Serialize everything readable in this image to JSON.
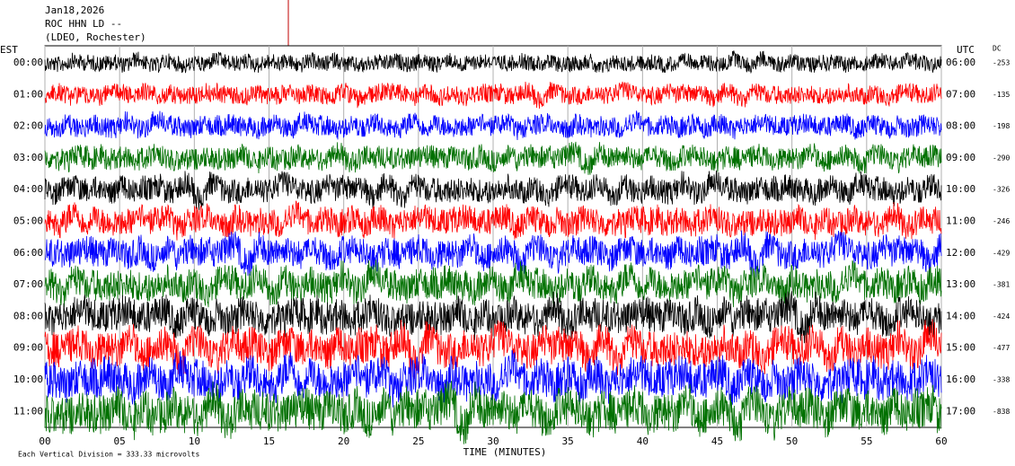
{
  "header": {
    "date": "Jan18,2026",
    "station": "ROC HHN LD --",
    "network": "(LDEO, Rochester)"
  },
  "left_axis": {
    "title": "EST",
    "labels": [
      "00:00",
      "01:00",
      "02:00",
      "03:00",
      "04:00",
      "05:00",
      "06:00",
      "07:00",
      "08:00",
      "09:00",
      "10:00",
      "11:00"
    ]
  },
  "right_axis": {
    "title": "UTC",
    "labels": [
      "06:00",
      "07:00",
      "08:00",
      "09:00",
      "10:00",
      "11:00",
      "12:00",
      "13:00",
      "14:00",
      "15:00",
      "16:00",
      "17:00"
    ]
  },
  "dc": {
    "title": "DC",
    "labels": [
      "-253",
      "-135",
      "-198",
      "-290",
      "-326",
      "-246",
      "-429",
      "-381",
      "-424",
      "-477",
      "-338",
      "-838"
    ]
  },
  "trace_colors": [
    "#000000",
    "#ff0000",
    "#0000ff",
    "#007000"
  ],
  "x_axis": {
    "title": "TIME (MINUTES)",
    "xlim": [
      0,
      60
    ],
    "xticks": [
      {
        "value": 0,
        "label": "00"
      },
      {
        "value": 5,
        "label": "05"
      },
      10,
      15,
      20,
      25,
      30,
      35,
      40,
      45,
      50,
      55,
      60
    ]
  },
  "footer": "Each Vertical Division =  333.33 microvolts"
}
